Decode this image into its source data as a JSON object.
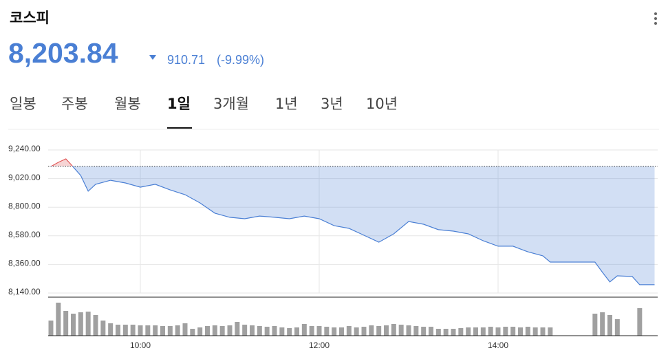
{
  "header": {
    "title": "코스피",
    "price": "8,203.84",
    "change": "910.71",
    "change_pct": "(-9.99%)"
  },
  "tabs": [
    "일봉",
    "주봉",
    "월봉",
    "1일",
    "3개월",
    "1년",
    "3년",
    "10년"
  ],
  "selected_tab": 3,
  "chart_data": {
    "type": "line",
    "x": [
      "09:00",
      "09:05",
      "09:10",
      "09:13",
      "09:20",
      "09:25",
      "09:30",
      "09:40",
      "09:50",
      "10:00",
      "10:10",
      "10:20",
      "10:30",
      "10:40",
      "10:50",
      "11:00",
      "11:10",
      "11:20",
      "11:30",
      "11:40",
      "11:50",
      "12:00",
      "12:10",
      "12:20",
      "12:30",
      "12:40",
      "12:50",
      "13:00",
      "13:10",
      "13:20",
      "13:30",
      "13:40",
      "13:50",
      "14:00",
      "14:10",
      "14:20",
      "14:30",
      "14:35",
      "15:00",
      "15:05",
      "15:10",
      "15:15",
      "15:20",
      "15:30",
      "15:35",
      "15:45"
    ],
    "series": [
      {
        "color": "#4a7fd4",
        "up_color": "#e05555",
        "values": [
          9113,
          9145,
          9171,
          9134,
          9044,
          8923,
          8976,
          9007,
          8986,
          8954,
          8976,
          8933,
          8896,
          8833,
          8754,
          8722,
          8711,
          8732,
          8722,
          8711,
          8732,
          8711,
          8658,
          8637,
          8584,
          8531,
          8595,
          8690,
          8669,
          8627,
          8616,
          8595,
          8542,
          8500,
          8500,
          8457,
          8426,
          8378,
          8378,
          8378,
          8299,
          8225,
          8272,
          8267,
          8204,
          8204
        ]
      }
    ],
    "reference_line": 9114.55,
    "ylim": [
      8140,
      9240
    ],
    "yticks": [
      {
        "value": 8140,
        "label": "8,140.00"
      },
      {
        "value": 8360,
        "label": "8,360.00"
      },
      {
        "value": 8580,
        "label": "8,580.00"
      },
      {
        "value": 8800,
        "label": "8,800.00"
      },
      {
        "value": 9020,
        "label": "9,020.00"
      },
      {
        "value": 9240,
        "label": "9,240.00"
      }
    ],
    "xticks": [
      "10:00",
      "12:00",
      "14:00"
    ],
    "grid": true,
    "volume": {
      "color": "#a0a0a0",
      "x": [
        "09:00",
        "09:05",
        "09:10",
        "09:15",
        "09:20",
        "09:25",
        "09:30",
        "09:35",
        "09:40",
        "09:45",
        "09:50",
        "09:55",
        "10:00",
        "10:05",
        "10:10",
        "10:15",
        "10:20",
        "10:25",
        "10:30",
        "10:35",
        "10:40",
        "10:45",
        "10:50",
        "10:55",
        "11:00",
        "11:05",
        "11:10",
        "11:15",
        "11:20",
        "11:25",
        "11:30",
        "11:35",
        "11:40",
        "11:45",
        "11:50",
        "11:55",
        "12:00",
        "12:05",
        "12:10",
        "12:15",
        "12:20",
        "12:25",
        "12:30",
        "12:35",
        "12:40",
        "12:45",
        "12:50",
        "12:55",
        "13:00",
        "13:05",
        "13:10",
        "13:15",
        "13:20",
        "13:25",
        "13:30",
        "13:35",
        "13:40",
        "13:45",
        "13:50",
        "13:55",
        "14:00",
        "14:05",
        "14:10",
        "14:15",
        "14:20",
        "14:25",
        "14:30",
        "14:35",
        "15:05",
        "15:10",
        "15:15",
        "15:20",
        "15:35"
      ],
      "values": [
        22,
        48,
        36,
        32,
        34,
        35,
        30,
        22,
        18,
        16,
        16,
        16,
        15,
        15,
        15,
        14,
        14,
        15,
        18,
        10,
        12,
        14,
        15,
        14,
        15,
        20,
        16,
        15,
        14,
        13,
        14,
        12,
        11,
        12,
        17,
        14,
        14,
        13,
        12,
        12,
        14,
        12,
        13,
        15,
        14,
        15,
        17,
        16,
        15,
        14,
        13,
        13,
        10,
        10,
        10,
        11,
        12,
        12,
        12,
        13,
        12,
        13,
        13,
        12,
        13,
        12,
        12,
        12,
        32,
        34,
        30,
        24,
        40
      ]
    }
  }
}
